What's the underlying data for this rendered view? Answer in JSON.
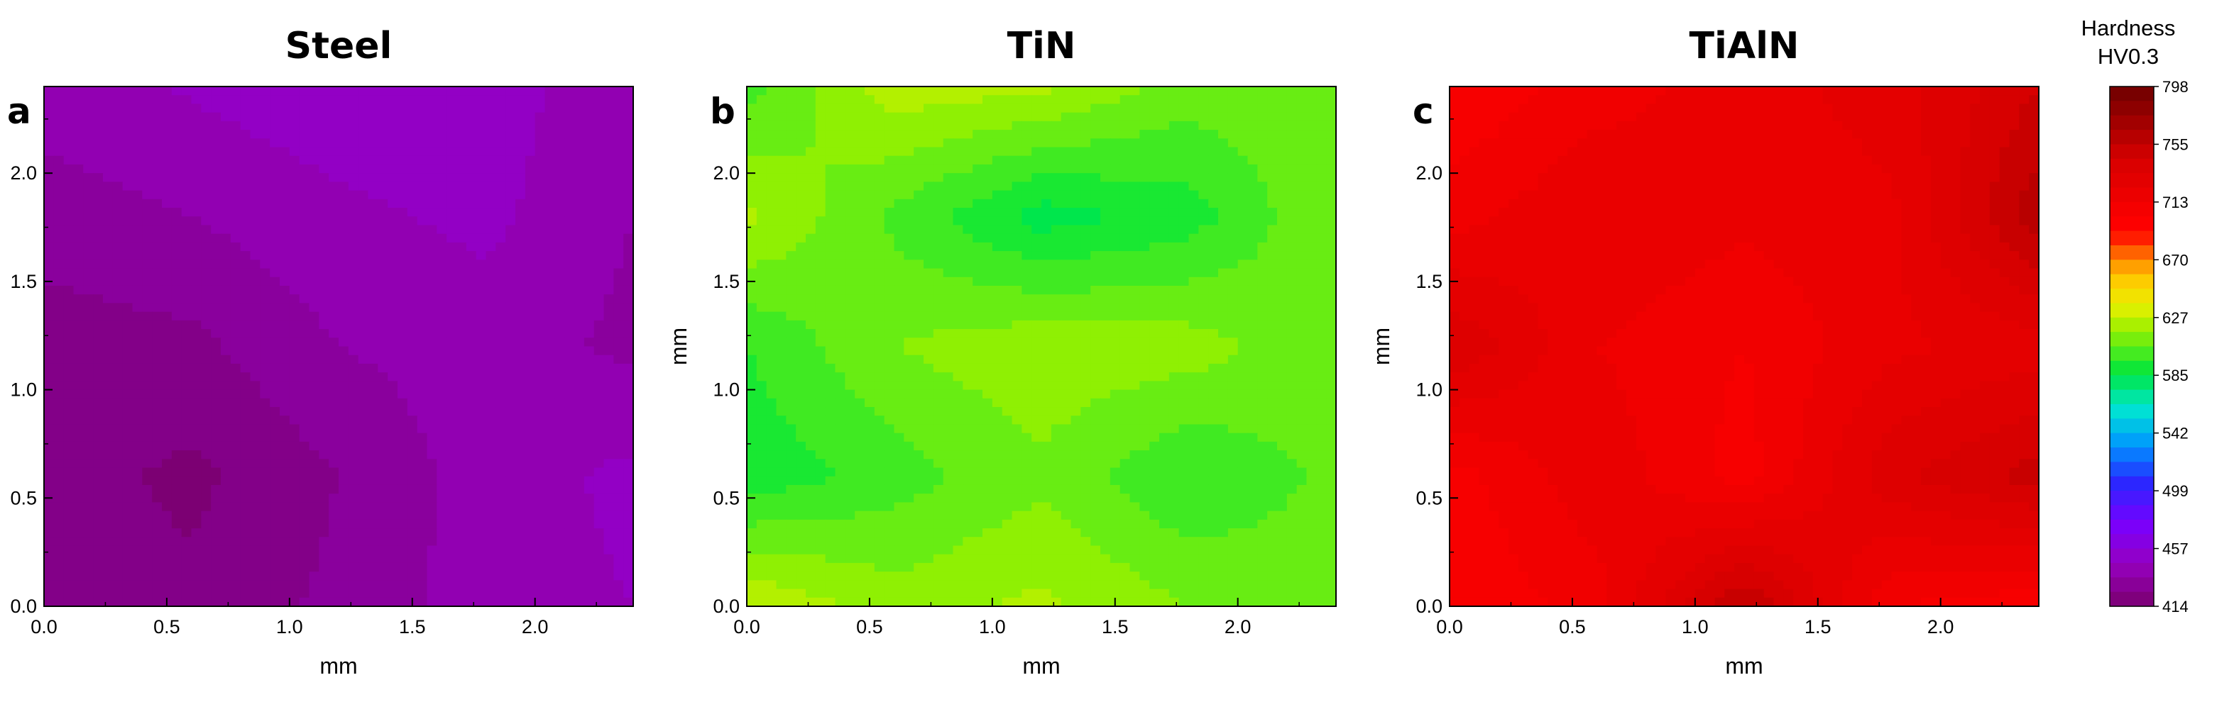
{
  "chart_data": {
    "type": "heatmap",
    "colorbar": {
      "title_line1": "Hardness",
      "title_line2": "HV0.3",
      "min": 414,
      "max": 798,
      "tick_labels": [
        "798",
        "755",
        "713",
        "670",
        "627",
        "585",
        "542",
        "499",
        "457",
        "414"
      ]
    },
    "panels": [
      {
        "title": "Steel",
        "letter": "a",
        "xlabel": "mm",
        "ylabel": "mm",
        "xlim": [
          0,
          2.4
        ],
        "ylim": [
          0,
          2.4
        ],
        "xticks": [
          "0.0",
          "0.5",
          "1.0",
          "1.5",
          "2.0"
        ],
        "yticks": [
          "0.0",
          "0.5",
          "1.0",
          "1.5",
          "2.0"
        ],
        "x": [
          0.0,
          0.6,
          1.2,
          1.8,
          2.4
        ],
        "y": [
          2.4,
          1.8,
          1.2,
          0.6,
          0.0
        ],
        "z": [
          [
            440,
            445,
            450,
            448,
            438
          ],
          [
            432,
            436,
            442,
            446,
            436
          ],
          [
            424,
            426,
            436,
            440,
            434
          ],
          [
            424,
            418,
            428,
            440,
            446
          ],
          [
            426,
            422,
            430,
            440,
            444
          ]
        ]
      },
      {
        "title": "TiN",
        "letter": "b",
        "xlabel": "mm",
        "ylabel": "mm",
        "xlim": [
          0,
          2.4
        ],
        "ylim": [
          0,
          2.4
        ],
        "xticks": [
          "0.0",
          "0.5",
          "1.0",
          "1.5",
          "2.0"
        ],
        "yticks": [
          "0.0",
          "0.5",
          "1.0",
          "1.5",
          "2.0"
        ],
        "x": [
          0.0,
          0.6,
          1.2,
          1.8,
          2.4
        ],
        "y": [
          2.4,
          1.8,
          1.2,
          0.6,
          0.0
        ],
        "z": [
          [
            600,
            625,
            622,
            608,
            612
          ],
          [
            622,
            602,
            584,
            592,
            612
          ],
          [
            596,
            612,
            618,
            616,
            606
          ],
          [
            590,
            600,
            610,
            596,
            606
          ],
          [
            628,
            616,
            622,
            612,
            608
          ]
        ]
      },
      {
        "title": "TiAlN",
        "letter": "c",
        "xlabel": "mm",
        "ylabel": "mm",
        "xlim": [
          0,
          2.4
        ],
        "ylim": [
          0,
          2.4
        ],
        "xticks": [
          "0.0",
          "0.5",
          "1.0",
          "1.5",
          "2.0"
        ],
        "yticks": [
          "0.0",
          "0.5",
          "1.0",
          "1.5",
          "2.0"
        ],
        "x": [
          0.0,
          0.6,
          1.2,
          1.8,
          2.4
        ],
        "y": [
          2.4,
          1.8,
          1.2,
          0.6,
          0.0
        ],
        "z": [
          [
            700,
            712,
            720,
            728,
            748
          ],
          [
            712,
            724,
            718,
            722,
            762
          ],
          [
            740,
            716,
            708,
            722,
            728
          ],
          [
            704,
            722,
            704,
            738,
            752
          ],
          [
            700,
            712,
            758,
            708,
            702
          ]
        ]
      }
    ]
  }
}
